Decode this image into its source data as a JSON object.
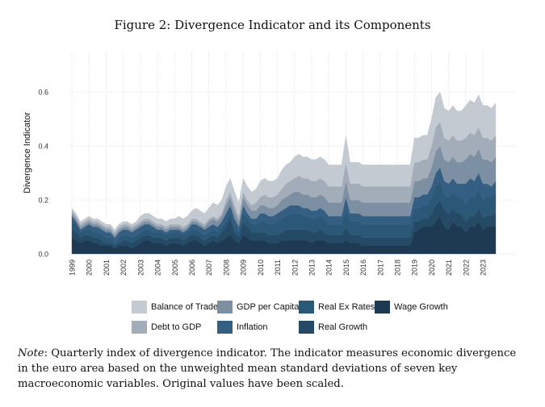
{
  "figure_title": "Figure 2: Divergence Indicator and its Components",
  "note_label": "Note",
  "note_text": ": Quarterly index of divergence indicator. The indicator measures economic divergence in the euro area based on the unweighted mean standard deviations of seven key macroeconomic variables. Original values have been scaled.",
  "chart_data": {
    "type": "area",
    "stacked": true,
    "title": "",
    "xlabel": "",
    "ylabel": "Divergence Indicator",
    "xlim": [
      1999.0,
      2023.75
    ],
    "ylim": [
      0,
      0.75
    ],
    "yticks": [
      "0.0",
      "0.2",
      "0.4",
      "0.6"
    ],
    "xtick_labels": [
      "1999",
      "2000",
      "2001",
      "2002",
      "2003",
      "2004",
      "2005",
      "2006",
      "2007",
      "2008",
      "2009",
      "2010",
      "2011",
      "2012",
      "2013",
      "2014",
      "2015",
      "2016",
      "2017",
      "2018",
      "2019",
      "2020",
      "2021",
      "2022",
      "2023"
    ],
    "grid": true,
    "legend_position": "bottom",
    "x": [
      1999.0,
      1999.25,
      1999.5,
      1999.75,
      2000.0,
      2000.25,
      2000.5,
      2000.75,
      2001.0,
      2001.25,
      2001.5,
      2001.75,
      2002.0,
      2002.25,
      2002.5,
      2002.75,
      2003.0,
      2003.25,
      2003.5,
      2003.75,
      2004.0,
      2004.25,
      2004.5,
      2004.75,
      2005.0,
      2005.25,
      2005.5,
      2005.75,
      2006.0,
      2006.25,
      2006.5,
      2006.75,
      2007.0,
      2007.25,
      2007.5,
      2007.75,
      2008.0,
      2008.25,
      2008.5,
      2008.75,
      2009.0,
      2009.25,
      2009.5,
      2009.75,
      2010.0,
      2010.25,
      2010.5,
      2010.75,
      2011.0,
      2011.25,
      2011.5,
      2011.75,
      2012.0,
      2012.25,
      2012.5,
      2012.75,
      2013.0,
      2013.25,
      2013.5,
      2013.75,
      2014.0,
      2014.25,
      2014.5,
      2014.75,
      2015.0,
      2015.25,
      2015.5,
      2015.75,
      2016.0,
      2016.25,
      2016.5,
      2016.75,
      2017.0,
      2017.25,
      2017.5,
      2017.75,
      2018.0,
      2018.25,
      2018.5,
      2018.75,
      2019.0,
      2019.25,
      2019.5,
      2019.75,
      2020.0,
      2020.25,
      2020.5,
      2020.75,
      2021.0,
      2021.25,
      2021.5,
      2021.75,
      2022.0,
      2022.25,
      2022.5,
      2022.75,
      2023.0,
      2023.25,
      2023.5,
      2023.75
    ],
    "series": [
      {
        "name": "Wage Growth",
        "color": "#1e3a52",
        "values": [
          0.06,
          0.05,
          0.04,
          0.05,
          0.05,
          0.04,
          0.04,
          0.03,
          0.03,
          0.03,
          0.02,
          0.03,
          0.03,
          0.03,
          0.02,
          0.03,
          0.04,
          0.05,
          0.05,
          0.04,
          0.04,
          0.04,
          0.03,
          0.04,
          0.04,
          0.04,
          0.03,
          0.04,
          0.05,
          0.05,
          0.04,
          0.03,
          0.04,
          0.05,
          0.04,
          0.05,
          0.06,
          0.07,
          0.05,
          0.04,
          0.07,
          0.06,
          0.05,
          0.05,
          0.05,
          0.05,
          0.04,
          0.04,
          0.04,
          0.05,
          0.05,
          0.05,
          0.05,
          0.05,
          0.05,
          0.05,
          0.04,
          0.05,
          0.05,
          0.05,
          0.04,
          0.04,
          0.04,
          0.04,
          0.05,
          0.04,
          0.04,
          0.04,
          0.03,
          0.03,
          0.03,
          0.03,
          0.03,
          0.03,
          0.03,
          0.03,
          0.03,
          0.03,
          0.03,
          0.03,
          0.08,
          0.09,
          0.1,
          0.1,
          0.1,
          0.12,
          0.14,
          0.1,
          0.09,
          0.12,
          0.1,
          0.1,
          0.08,
          0.1,
          0.1,
          0.12,
          0.09,
          0.1,
          0.1,
          0.1
        ]
      },
      {
        "name": "Real Growth",
        "color": "#254a66",
        "values": [
          0.03,
          0.03,
          0.02,
          0.02,
          0.02,
          0.02,
          0.02,
          0.02,
          0.01,
          0.01,
          0.01,
          0.01,
          0.02,
          0.02,
          0.02,
          0.02,
          0.02,
          0.02,
          0.02,
          0.02,
          0.02,
          0.02,
          0.02,
          0.02,
          0.02,
          0.02,
          0.02,
          0.02,
          0.02,
          0.02,
          0.02,
          0.02,
          0.02,
          0.02,
          0.02,
          0.03,
          0.04,
          0.06,
          0.03,
          0.02,
          0.05,
          0.04,
          0.03,
          0.03,
          0.03,
          0.03,
          0.03,
          0.03,
          0.03,
          0.03,
          0.04,
          0.04,
          0.04,
          0.04,
          0.04,
          0.04,
          0.04,
          0.03,
          0.04,
          0.03,
          0.03,
          0.03,
          0.03,
          0.03,
          0.05,
          0.03,
          0.03,
          0.03,
          0.03,
          0.03,
          0.03,
          0.03,
          0.03,
          0.03,
          0.03,
          0.03,
          0.03,
          0.03,
          0.03,
          0.03,
          0.04,
          0.03,
          0.03,
          0.03,
          0.05,
          0.06,
          0.06,
          0.06,
          0.06,
          0.05,
          0.05,
          0.05,
          0.04,
          0.04,
          0.04,
          0.05,
          0.04,
          0.04,
          0.04,
          0.05
        ]
      },
      {
        "name": "Real Ex Rates",
        "color": "#2c5878",
        "values": [
          0.03,
          0.03,
          0.02,
          0.02,
          0.02,
          0.02,
          0.02,
          0.02,
          0.02,
          0.02,
          0.01,
          0.02,
          0.02,
          0.02,
          0.02,
          0.02,
          0.02,
          0.02,
          0.02,
          0.02,
          0.02,
          0.02,
          0.02,
          0.02,
          0.02,
          0.02,
          0.02,
          0.02,
          0.02,
          0.02,
          0.02,
          0.02,
          0.02,
          0.02,
          0.02,
          0.02,
          0.02,
          0.02,
          0.02,
          0.02,
          0.03,
          0.03,
          0.03,
          0.03,
          0.04,
          0.04,
          0.04,
          0.04,
          0.05,
          0.05,
          0.05,
          0.06,
          0.06,
          0.06,
          0.05,
          0.05,
          0.05,
          0.05,
          0.05,
          0.05,
          0.04,
          0.04,
          0.04,
          0.04,
          0.06,
          0.05,
          0.05,
          0.05,
          0.05,
          0.05,
          0.05,
          0.05,
          0.05,
          0.05,
          0.05,
          0.05,
          0.05,
          0.05,
          0.05,
          0.05,
          0.05,
          0.05,
          0.05,
          0.05,
          0.06,
          0.07,
          0.07,
          0.06,
          0.06,
          0.06,
          0.06,
          0.06,
          0.06,
          0.07,
          0.07,
          0.07,
          0.07,
          0.07,
          0.07,
          0.08
        ]
      },
      {
        "name": "Inflation",
        "color": "#345f82",
        "values": [
          0.02,
          0.01,
          0.01,
          0.01,
          0.02,
          0.02,
          0.02,
          0.02,
          0.02,
          0.02,
          0.02,
          0.02,
          0.02,
          0.02,
          0.02,
          0.02,
          0.02,
          0.02,
          0.02,
          0.02,
          0.01,
          0.01,
          0.01,
          0.01,
          0.01,
          0.01,
          0.01,
          0.01,
          0.02,
          0.02,
          0.02,
          0.02,
          0.02,
          0.02,
          0.02,
          0.02,
          0.03,
          0.03,
          0.03,
          0.02,
          0.03,
          0.02,
          0.02,
          0.02,
          0.03,
          0.03,
          0.03,
          0.03,
          0.03,
          0.03,
          0.03,
          0.03,
          0.03,
          0.03,
          0.03,
          0.03,
          0.03,
          0.03,
          0.03,
          0.03,
          0.03,
          0.03,
          0.03,
          0.03,
          0.05,
          0.03,
          0.03,
          0.03,
          0.03,
          0.03,
          0.03,
          0.03,
          0.03,
          0.03,
          0.03,
          0.03,
          0.03,
          0.03,
          0.03,
          0.03,
          0.04,
          0.04,
          0.04,
          0.04,
          0.04,
          0.05,
          0.05,
          0.05,
          0.05,
          0.05,
          0.05,
          0.05,
          0.08,
          0.07,
          0.06,
          0.06,
          0.06,
          0.05,
          0.04,
          0.04
        ]
      },
      {
        "name": "GDP per Capita",
        "color": "#7d8fa3",
        "values": [
          0.01,
          0.01,
          0.01,
          0.01,
          0.01,
          0.01,
          0.01,
          0.01,
          0.01,
          0.01,
          0.01,
          0.01,
          0.01,
          0.01,
          0.01,
          0.01,
          0.01,
          0.01,
          0.01,
          0.01,
          0.01,
          0.01,
          0.01,
          0.01,
          0.01,
          0.01,
          0.01,
          0.01,
          0.01,
          0.01,
          0.01,
          0.01,
          0.02,
          0.02,
          0.02,
          0.02,
          0.03,
          0.03,
          0.03,
          0.02,
          0.03,
          0.03,
          0.03,
          0.03,
          0.03,
          0.03,
          0.03,
          0.03,
          0.03,
          0.04,
          0.04,
          0.04,
          0.05,
          0.05,
          0.05,
          0.05,
          0.05,
          0.05,
          0.05,
          0.05,
          0.05,
          0.05,
          0.05,
          0.05,
          0.06,
          0.05,
          0.05,
          0.05,
          0.05,
          0.05,
          0.05,
          0.05,
          0.05,
          0.05,
          0.05,
          0.05,
          0.05,
          0.05,
          0.05,
          0.05,
          0.06,
          0.06,
          0.06,
          0.06,
          0.07,
          0.08,
          0.08,
          0.08,
          0.08,
          0.08,
          0.08,
          0.08,
          0.09,
          0.09,
          0.09,
          0.09,
          0.09,
          0.09,
          0.09,
          0.09
        ]
      },
      {
        "name": "Debt to GDP",
        "color": "#a3adba",
        "values": [
          0.01,
          0.01,
          0.01,
          0.01,
          0.01,
          0.01,
          0.01,
          0.01,
          0.01,
          0.01,
          0.01,
          0.01,
          0.01,
          0.01,
          0.01,
          0.01,
          0.01,
          0.01,
          0.01,
          0.01,
          0.01,
          0.01,
          0.01,
          0.01,
          0.01,
          0.01,
          0.01,
          0.01,
          0.01,
          0.01,
          0.01,
          0.01,
          0.01,
          0.01,
          0.01,
          0.01,
          0.02,
          0.02,
          0.02,
          0.02,
          0.02,
          0.02,
          0.02,
          0.03,
          0.03,
          0.04,
          0.04,
          0.04,
          0.04,
          0.04,
          0.05,
          0.05,
          0.05,
          0.06,
          0.06,
          0.06,
          0.06,
          0.06,
          0.06,
          0.06,
          0.06,
          0.06,
          0.06,
          0.06,
          0.07,
          0.06,
          0.06,
          0.06,
          0.06,
          0.06,
          0.06,
          0.06,
          0.06,
          0.06,
          0.06,
          0.06,
          0.06,
          0.06,
          0.06,
          0.06,
          0.07,
          0.07,
          0.07,
          0.07,
          0.08,
          0.09,
          0.09,
          0.08,
          0.08,
          0.08,
          0.08,
          0.08,
          0.08,
          0.08,
          0.08,
          0.08,
          0.08,
          0.08,
          0.08,
          0.08
        ]
      },
      {
        "name": "Balance of Trade",
        "color": "#c3cad2",
        "values": [
          0.01,
          0.01,
          0.01,
          0.01,
          0.01,
          0.01,
          0.01,
          0.01,
          0.01,
          0.01,
          0.01,
          0.01,
          0.01,
          0.01,
          0.01,
          0.01,
          0.02,
          0.02,
          0.02,
          0.02,
          0.02,
          0.02,
          0.02,
          0.02,
          0.02,
          0.03,
          0.03,
          0.03,
          0.03,
          0.04,
          0.04,
          0.04,
          0.04,
          0.05,
          0.05,
          0.05,
          0.05,
          0.05,
          0.05,
          0.05,
          0.05,
          0.05,
          0.05,
          0.05,
          0.06,
          0.06,
          0.06,
          0.06,
          0.06,
          0.07,
          0.07,
          0.07,
          0.08,
          0.08,
          0.08,
          0.08,
          0.08,
          0.08,
          0.08,
          0.08,
          0.08,
          0.08,
          0.08,
          0.08,
          0.1,
          0.08,
          0.08,
          0.08,
          0.08,
          0.08,
          0.08,
          0.08,
          0.08,
          0.08,
          0.08,
          0.08,
          0.08,
          0.08,
          0.08,
          0.08,
          0.09,
          0.09,
          0.09,
          0.09,
          0.1,
          0.11,
          0.11,
          0.11,
          0.11,
          0.11,
          0.11,
          0.11,
          0.12,
          0.12,
          0.12,
          0.12,
          0.12,
          0.12,
          0.12,
          0.12
        ]
      }
    ]
  },
  "legend": [
    {
      "label": "Balance of Trade",
      "color": "#c3cad2"
    },
    {
      "label": "GDP per Capita",
      "color": "#7d8fa3"
    },
    {
      "label": "Real Ex Rates",
      "color": "#2c5878"
    },
    {
      "label": "Wage Growth",
      "color": "#1e3a52"
    },
    {
      "label": "Debt to GDP",
      "color": "#a3adba"
    },
    {
      "label": "Inflation",
      "color": "#345f82"
    },
    {
      "label": "Real Growth",
      "color": "#254a66"
    }
  ]
}
